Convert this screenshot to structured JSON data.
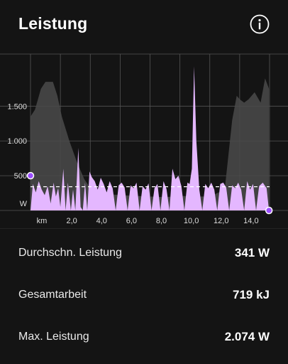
{
  "header": {
    "title": "Leistung",
    "info_icon": "info-circle-icon"
  },
  "chart_data": {
    "type": "area",
    "x_unit": "km",
    "y_unit": "W",
    "xlim": [
      0,
      16.0
    ],
    "ylim": [
      0,
      2250
    ],
    "x_ticks": [
      "km",
      "2,0",
      "4,0",
      "6,0",
      "8,0",
      "10,0",
      "12,0",
      "14,0"
    ],
    "y_ticks": [
      "1.500",
      "1.000",
      "500",
      "W"
    ],
    "average_line": 341,
    "colors": {
      "power": "#e4b7ff",
      "elevation": "#4a4a4a",
      "average": "#ffffff",
      "marker": "#9b4dff",
      "grid": "#555555"
    },
    "power": {
      "x": [
        0,
        0.16,
        0.35,
        0.55,
        0.75,
        0.95,
        1.15,
        1.35,
        1.55,
        1.7,
        1.85,
        2.0,
        2.2,
        2.35,
        2.5,
        2.7,
        2.85,
        3.0,
        3.2,
        3.35,
        3.5,
        3.65,
        3.8,
        3.95,
        4.1,
        4.3,
        4.5,
        4.7,
        4.9,
        5.1,
        5.3,
        5.5,
        5.7,
        5.9,
        6.1,
        6.3,
        6.5,
        6.7,
        6.9,
        7.1,
        7.3,
        7.5,
        7.7,
        7.9,
        8.1,
        8.3,
        8.5,
        8.7,
        8.9,
        9.1,
        9.3,
        9.5,
        9.7,
        9.9,
        10.1,
        10.3,
        10.5,
        10.65,
        10.8,
        10.95,
        11.1,
        11.3,
        11.5,
        11.7,
        11.9,
        12.1,
        12.3,
        12.5,
        12.7,
        12.9,
        13.1,
        13.3,
        13.5,
        13.7,
        13.9,
        14.1,
        14.3,
        14.5,
        14.7,
        14.9,
        15.1,
        15.3,
        15.55,
        15.8,
        15.96
      ],
      "values": [
        0,
        380,
        260,
        420,
        300,
        220,
        350,
        100,
        400,
        200,
        320,
        50,
        600,
        0,
        400,
        0,
        300,
        0,
        900,
        50,
        0,
        400,
        0,
        560,
        480,
        420,
        300,
        470,
        380,
        260,
        420,
        320,
        0,
        360,
        400,
        330,
        0,
        360,
        320,
        400,
        0,
        350,
        300,
        390,
        0,
        320,
        380,
        0,
        420,
        310,
        0,
        600,
        450,
        500,
        350,
        0,
        400,
        380,
        600,
        2074,
        1000,
        300,
        0,
        380,
        320,
        400,
        300,
        0,
        380,
        400,
        330,
        0,
        360,
        320,
        400,
        300,
        0,
        420,
        300,
        380,
        0,
        350,
        400,
        320,
        0
      ]
    },
    "elevation": {
      "x": [
        0,
        0.3,
        0.7,
        1.0,
        1.5,
        1.8,
        2.1,
        2.6,
        3.1,
        3.6,
        4.2,
        5.0,
        6.0,
        7.0,
        8.0,
        9.0,
        10.0,
        11.0,
        12.0,
        13.0,
        13.5,
        13.8,
        14.0,
        14.3,
        14.6,
        15.0,
        15.4,
        15.7,
        15.96
      ],
      "values": [
        1350,
        1450,
        1750,
        1850,
        1850,
        1650,
        1350,
        1000,
        700,
        450,
        260,
        240,
        220,
        210,
        200,
        190,
        210,
        200,
        200,
        300,
        1300,
        1650,
        1600,
        1550,
        1600,
        1700,
        1550,
        1900,
        1750
      ]
    },
    "markers": [
      {
        "x": 0,
        "value": 500
      },
      {
        "x": 15.96,
        "value": 0
      }
    ]
  },
  "stats": [
    {
      "label": "Durchschn. Leistung",
      "value": "341 W"
    },
    {
      "label": "Gesamtarbeit",
      "value": "719 kJ"
    },
    {
      "label": "Max. Leistung",
      "value": "2.074 W"
    }
  ]
}
